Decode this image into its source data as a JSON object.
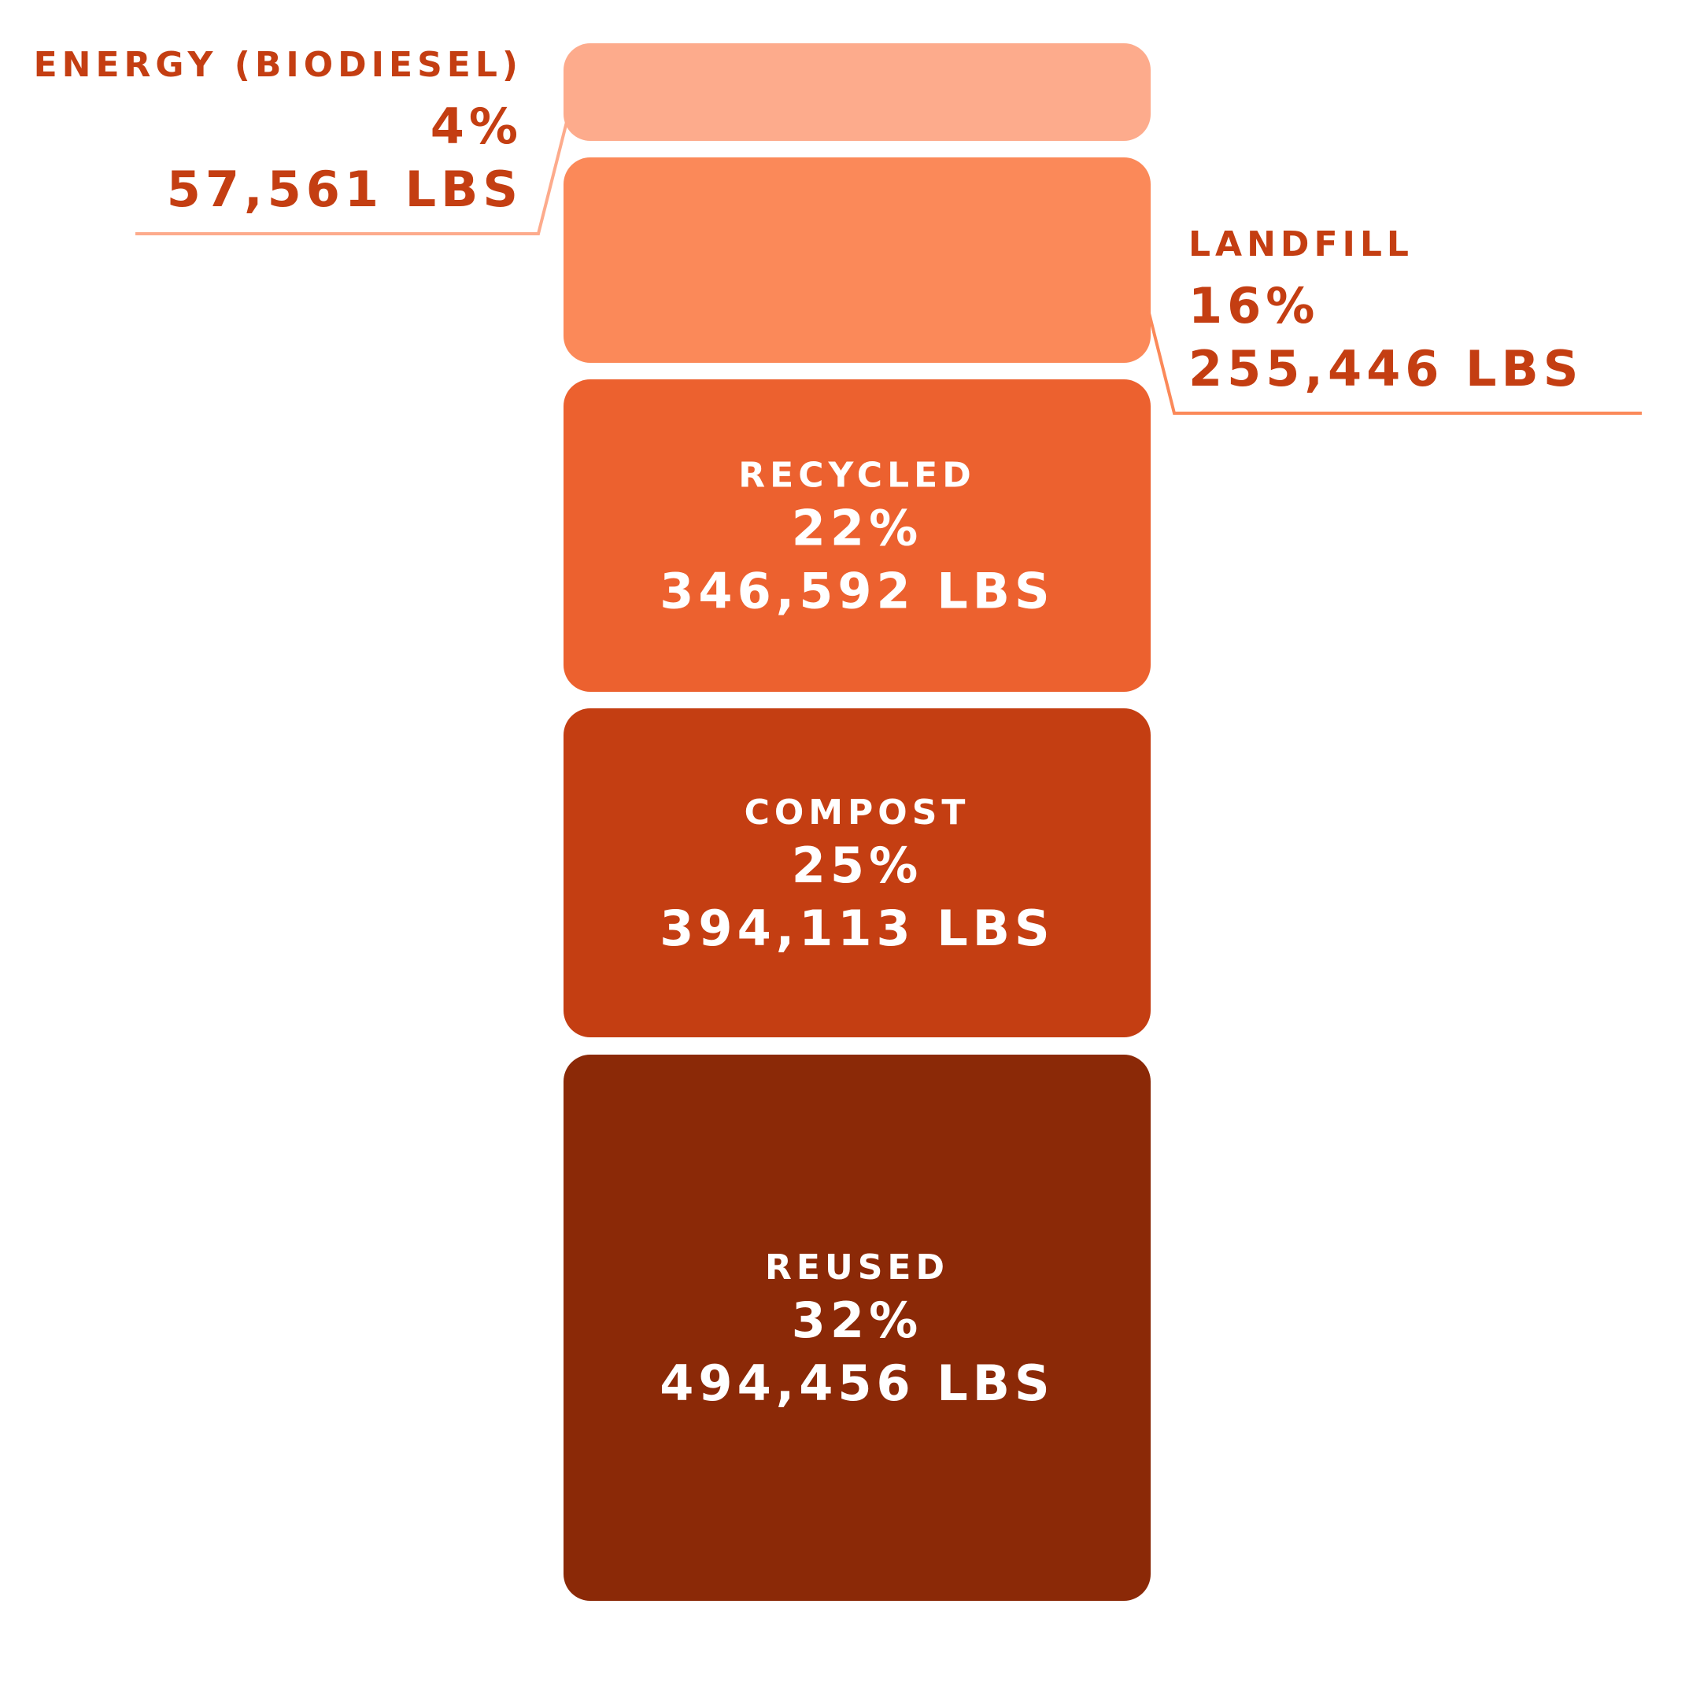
{
  "chart_data": {
    "type": "bar",
    "stacked": true,
    "orientation": "vertical",
    "unit": "LBS",
    "segments": [
      {
        "name": "ENERGY (BIODIESEL)",
        "percent_label": "4%",
        "amount_label": "57,561 LBS",
        "percent": 4,
        "lbs": 57561,
        "color": "#FDAB8C",
        "label_position": "outside-left"
      },
      {
        "name": "LANDFILL",
        "percent_label": "16%",
        "amount_label": "255,446 LBS",
        "percent": 16,
        "lbs": 255446,
        "color": "#FB8959",
        "label_position": "outside-right"
      },
      {
        "name": "RECYCLED",
        "percent_label": "22%",
        "amount_label": "346,592 LBS",
        "percent": 22,
        "lbs": 346592,
        "color": "#EC612F",
        "label_position": "inside"
      },
      {
        "name": "COMPOST",
        "percent_label": "25%",
        "amount_label": "394,113 LBS",
        "percent": 25,
        "lbs": 394113,
        "color": "#C43E12",
        "label_position": "inside"
      },
      {
        "name": "REUSED",
        "percent_label": "32%",
        "amount_label": "494,456 LBS",
        "percent": 32,
        "lbs": 494456,
        "color": "#8B2907",
        "label_position": "inside"
      }
    ],
    "colors": {
      "outside_text": "#C43E12",
      "inside_text": "#ffffff",
      "energy_leader": "#FDAB8C",
      "landfill_leader": "#FB8959"
    }
  }
}
